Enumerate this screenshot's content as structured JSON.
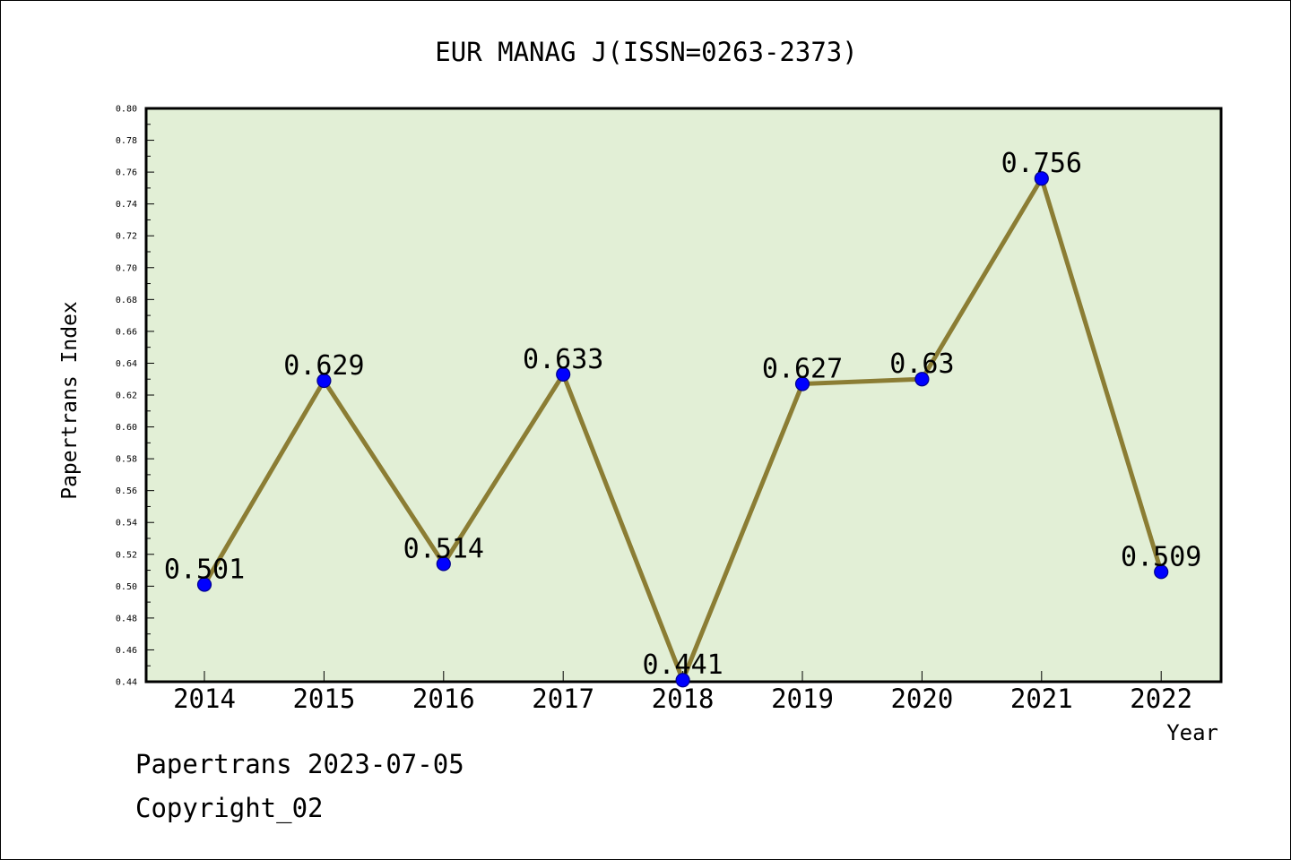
{
  "chart_data": {
    "type": "line",
    "title": "EUR MANAG J(ISSN=0263-2373)",
    "xlabel": "Year",
    "ylabel": "Papertrans Index",
    "categories": [
      "2014",
      "2015",
      "2016",
      "2017",
      "2018",
      "2019",
      "2020",
      "2021",
      "2022"
    ],
    "series": [
      {
        "values": [
          0.501,
          0.629,
          0.514,
          0.633,
          0.441,
          0.627,
          0.63,
          0.756,
          0.509
        ],
        "data_labels": [
          "0.501",
          "0.629",
          "0.514",
          "0.633",
          "0.441",
          "0.627",
          "0.63",
          "0.756",
          "0.509"
        ]
      }
    ],
    "ylim": [
      0.44,
      0.8
    ],
    "y_ticks": [
      "0.44",
      "0.46",
      "0.48",
      "0.50",
      "0.52",
      "0.54",
      "0.56",
      "0.58",
      "0.60",
      "0.62",
      "0.64",
      "0.66",
      "0.68",
      "0.70",
      "0.72",
      "0.74",
      "0.76",
      "0.78",
      "0.80"
    ],
    "grid": false,
    "legend": "none",
    "colors": {
      "plot_background": "#e2efd6",
      "line": "#8b7d34",
      "marker_fill": "#0000ff",
      "marker_edge": "#00008b"
    }
  },
  "footer": {
    "source": "Papertrans 2023-07-05",
    "copyright": "Copyright_02"
  }
}
